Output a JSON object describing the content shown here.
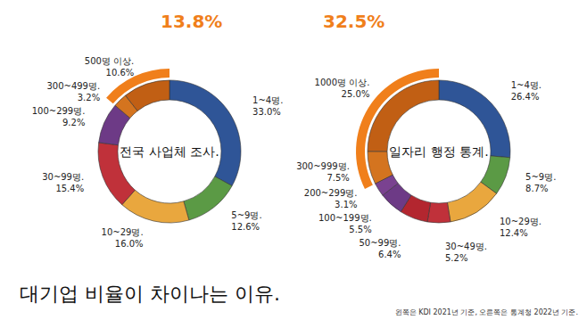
{
  "title": "대기업 비율이 차이나는 이유.",
  "note": "왼쪽은 KDI 2021년 기준, 오른쪽은 통계청 2022년 기준.",
  "chart_data": [
    {
      "type": "pie",
      "title": "전국 사업체 조사.",
      "categories": [
        "1~4명.",
        "5~9명.",
        "10~29명.",
        "30~99명.",
        "100~299명.",
        "300~499명.",
        "500명 이상."
      ],
      "values": [
        33.0,
        12.6,
        16.0,
        15.4,
        9.2,
        3.2,
        10.6
      ],
      "value_labels": [
        "33.0%",
        "12.6%",
        "16.0%",
        "15.4%",
        "9.2%",
        "3.2%",
        "10.6%"
      ],
      "colors": [
        "#2f5597",
        "#5b9a45",
        "#e9a73e",
        "#c0313a",
        "#6d3a86",
        "#d4741f",
        "#c15f14"
      ],
      "data_labels": true,
      "annotations": [
        {
          "text": "13.8%",
          "value": 13.8,
          "slices": [
            "300~499명.",
            "500명 이상."
          ]
        }
      ]
    },
    {
      "type": "pie",
      "title": "일자리 행정 통계.",
      "categories": [
        "1~4명.",
        "5~9명.",
        "10~29명.",
        "30~49명.",
        "50~99명.",
        "100~199명.",
        "200~299명.",
        "300~999명.",
        "1000명 이상."
      ],
      "values": [
        26.4,
        8.7,
        12.4,
        5.2,
        6.4,
        5.5,
        3.1,
        7.5,
        25.0
      ],
      "value_labels": [
        "26.4%",
        "8.7%",
        "12.4%",
        "5.2%",
        "6.4%",
        "5.5%",
        "3.1%",
        "7.5%",
        "25.0%"
      ],
      "colors": [
        "#2f5597",
        "#5b9a45",
        "#e9a73e",
        "#c0313a",
        "#b3262f",
        "#6d3a86",
        "#7a4290",
        "#d4741f",
        "#c15f14"
      ],
      "data_labels": true,
      "annotations": [
        {
          "text": "32.5%",
          "value": 32.5,
          "slices": [
            "300~999명.",
            "1000명 이상."
          ]
        }
      ]
    }
  ]
}
